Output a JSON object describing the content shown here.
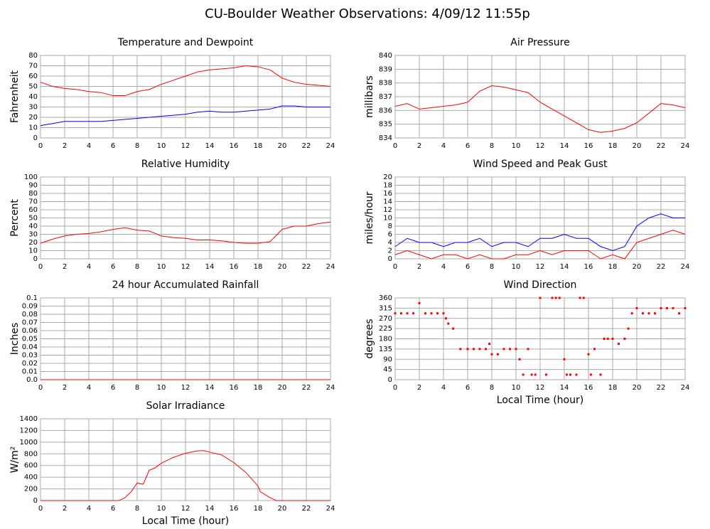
{
  "title": "CU-Boulder Weather Observations: 4/09/12 11:55p",
  "chart_data": [
    {
      "type": "line",
      "title": "Temperature and Dewpoint",
      "ylabel": "Fahrenheit",
      "x": [
        0,
        1,
        2,
        3,
        4,
        5,
        6,
        7,
        8,
        9,
        10,
        11,
        12,
        13,
        14,
        15,
        16,
        17,
        18,
        19,
        20,
        21,
        22,
        23,
        24
      ],
      "series": [
        {
          "color": "#ff0000",
          "values": [
            54,
            50,
            48,
            47,
            45,
            44,
            41,
            41,
            45,
            47,
            52,
            56,
            60,
            64,
            66,
            67,
            68,
            70,
            69,
            66,
            58,
            54,
            52,
            51,
            50
          ]
        },
        {
          "color": "#0000ff",
          "values": [
            12,
            14,
            16,
            16,
            16,
            16,
            17,
            18,
            19,
            20,
            21,
            22,
            23,
            25,
            26,
            25,
            25,
            26,
            27,
            28,
            31,
            31,
            30,
            30,
            30
          ]
        }
      ],
      "xlim": [
        0,
        24
      ],
      "xticks": [
        0,
        2,
        4,
        6,
        8,
        10,
        12,
        14,
        16,
        18,
        20,
        22,
        24
      ],
      "ylim": [
        0,
        80
      ],
      "yticks": [
        0,
        10,
        20,
        30,
        40,
        50,
        60,
        70,
        80
      ],
      "grid": true
    },
    {
      "type": "line",
      "title": "Air Pressure",
      "ylabel": "millibars",
      "x": [
        0,
        1,
        2,
        3,
        4,
        5,
        6,
        7,
        8,
        9,
        10,
        11,
        12,
        13,
        14,
        15,
        16,
        17,
        18,
        19,
        20,
        21,
        22,
        23,
        24
      ],
      "series": [
        {
          "color": "#ff0000",
          "values": [
            836.3,
            836.5,
            836.1,
            836.2,
            836.3,
            836.4,
            836.6,
            837.4,
            837.8,
            837.7,
            837.5,
            837.3,
            836.6,
            836.1,
            835.6,
            835.1,
            834.6,
            834.4,
            834.5,
            834.7,
            835.1,
            835.8,
            836.5,
            836.4,
            836.2
          ]
        }
      ],
      "xlim": [
        0,
        24
      ],
      "xticks": [
        0,
        2,
        4,
        6,
        8,
        10,
        12,
        14,
        16,
        18,
        20,
        22,
        24
      ],
      "ylim": [
        834,
        840
      ],
      "yticks": [
        834,
        835,
        836,
        837,
        838,
        839,
        840
      ],
      "grid": true
    },
    {
      "type": "line",
      "title": "Relative Humidity",
      "ylabel": "Percent",
      "x": [
        0,
        1,
        2,
        3,
        4,
        5,
        6,
        7,
        8,
        9,
        10,
        11,
        12,
        13,
        14,
        15,
        16,
        17,
        18,
        19,
        20,
        21,
        22,
        23,
        24
      ],
      "series": [
        {
          "color": "#ff0000",
          "values": [
            19,
            24,
            28,
            30,
            31,
            33,
            36,
            38,
            35,
            34,
            28,
            26,
            25,
            23,
            23,
            22,
            20,
            19,
            19,
            21,
            36,
            40,
            40,
            43,
            45
          ]
        }
      ],
      "xlim": [
        0,
        24
      ],
      "xticks": [
        0,
        2,
        4,
        6,
        8,
        10,
        12,
        14,
        16,
        18,
        20,
        22,
        24
      ],
      "ylim": [
        0,
        100
      ],
      "yticks": [
        0,
        10,
        20,
        30,
        40,
        50,
        60,
        70,
        80,
        90,
        100
      ],
      "grid": true
    },
    {
      "type": "line",
      "title": "Wind Speed and Peak Gust",
      "ylabel": "miles/hour",
      "x": [
        0,
        1,
        2,
        3,
        4,
        5,
        6,
        7,
        8,
        9,
        10,
        11,
        12,
        13,
        14,
        15,
        16,
        17,
        18,
        19,
        20,
        21,
        22,
        23,
        24
      ],
      "series": [
        {
          "color": "#ff0000",
          "values": [
            1,
            2,
            1,
            0,
            1,
            1,
            0,
            1,
            0,
            0,
            1,
            1,
            2,
            1,
            2,
            2,
            2,
            0,
            1,
            0,
            4,
            5,
            6,
            7,
            6
          ]
        },
        {
          "color": "#0000ff",
          "values": [
            3,
            5,
            4,
            4,
            3,
            4,
            4,
            5,
            3,
            4,
            4,
            3,
            5,
            5,
            6,
            5,
            5,
            3,
            2,
            3,
            8,
            10,
            11,
            10,
            10
          ]
        }
      ],
      "xlim": [
        0,
        24
      ],
      "xticks": [
        0,
        2,
        4,
        6,
        8,
        10,
        12,
        14,
        16,
        18,
        20,
        22,
        24
      ],
      "ylim": [
        0,
        20
      ],
      "yticks": [
        0,
        2,
        4,
        6,
        8,
        10,
        12,
        14,
        16,
        18,
        20
      ],
      "grid": true
    },
    {
      "type": "line",
      "title": "24 hour Accumulated Rainfall",
      "ylabel": "Inches",
      "x": [
        0,
        24
      ],
      "series": [
        {
          "color": "#ff0000",
          "values": [
            0,
            0
          ]
        }
      ],
      "xlim": [
        0,
        24
      ],
      "xticks": [
        0,
        2,
        4,
        6,
        8,
        10,
        12,
        14,
        16,
        18,
        20,
        22,
        24
      ],
      "ylim": [
        0,
        0.1
      ],
      "yticks": [
        {
          "value": 0,
          "label": "0.0"
        },
        0.01,
        0.02,
        0.03,
        0.04,
        0.05,
        0.06,
        0.07,
        0.08,
        0.09,
        0.1
      ],
      "grid": true
    },
    {
      "type": "scatter",
      "title": "Wind Direction",
      "ylabel": "degrees",
      "xlabel": "Local Time (hour)",
      "x": [
        0,
        0.5,
        1,
        1.5,
        2,
        2.5,
        3,
        3.5,
        4,
        4.2,
        4.4,
        4.8,
        5.4,
        6,
        6.5,
        7,
        7.5,
        7.8,
        8,
        8.5,
        9,
        9.5,
        10,
        10.3,
        10.6,
        11,
        11.3,
        11.6,
        12,
        12.5,
        13,
        13.3,
        13.6,
        14,
        14.2,
        14.5,
        15,
        15.3,
        15.6,
        16,
        16.2,
        16.5,
        17,
        17.3,
        17.6,
        18,
        18.5,
        19,
        19.3,
        19.6,
        20,
        20.5,
        21,
        21.5,
        22,
        22.5,
        23,
        23.5,
        24
      ],
      "series": [
        {
          "color": "#ff0000",
          "values": [
            292,
            292,
            292,
            292,
            337,
            292,
            292,
            292,
            292,
            270,
            247,
            225,
            135,
            135,
            135,
            135,
            135,
            158,
            112,
            112,
            135,
            135,
            135,
            90,
            22,
            135,
            22,
            22,
            360,
            22,
            360,
            360,
            360,
            90,
            22,
            22,
            22,
            360,
            360,
            112,
            22,
            135,
            22,
            180,
            180,
            180,
            158,
            180,
            225,
            292,
            315,
            292,
            292,
            292,
            315,
            315,
            315,
            292,
            315
          ]
        }
      ],
      "xlim": [
        0,
        24
      ],
      "xticks": [
        0,
        2,
        4,
        6,
        8,
        10,
        12,
        14,
        16,
        18,
        20,
        22,
        24
      ],
      "ylim": [
        0,
        360
      ],
      "yticks": [
        0,
        45,
        90,
        135,
        180,
        225,
        270,
        315,
        360
      ],
      "grid": true
    },
    {
      "type": "line",
      "title": "Solar Irradiance",
      "ylabel": "W/m²",
      "xlabel": "Local Time (hour)",
      "x": [
        0,
        6.5,
        7,
        7.5,
        8,
        8.5,
        9,
        9.5,
        10,
        11,
        12,
        13,
        13.5,
        14,
        15,
        16,
        17,
        18,
        18.2,
        19,
        19.5,
        24
      ],
      "series": [
        {
          "color": "#ff0000",
          "values": [
            0,
            0,
            50,
            150,
            300,
            280,
            520,
            560,
            640,
            740,
            810,
            850,
            855,
            830,
            780,
            650,
            480,
            250,
            150,
            50,
            0,
            0
          ]
        }
      ],
      "xlim": [
        0,
        24
      ],
      "xticks": [
        0,
        2,
        4,
        6,
        8,
        10,
        12,
        14,
        16,
        18,
        20,
        22,
        24
      ],
      "ylim": [
        0,
        1400
      ],
      "yticks": [
        0,
        200,
        400,
        600,
        800,
        1000,
        1200,
        1400
      ],
      "grid": true
    }
  ]
}
